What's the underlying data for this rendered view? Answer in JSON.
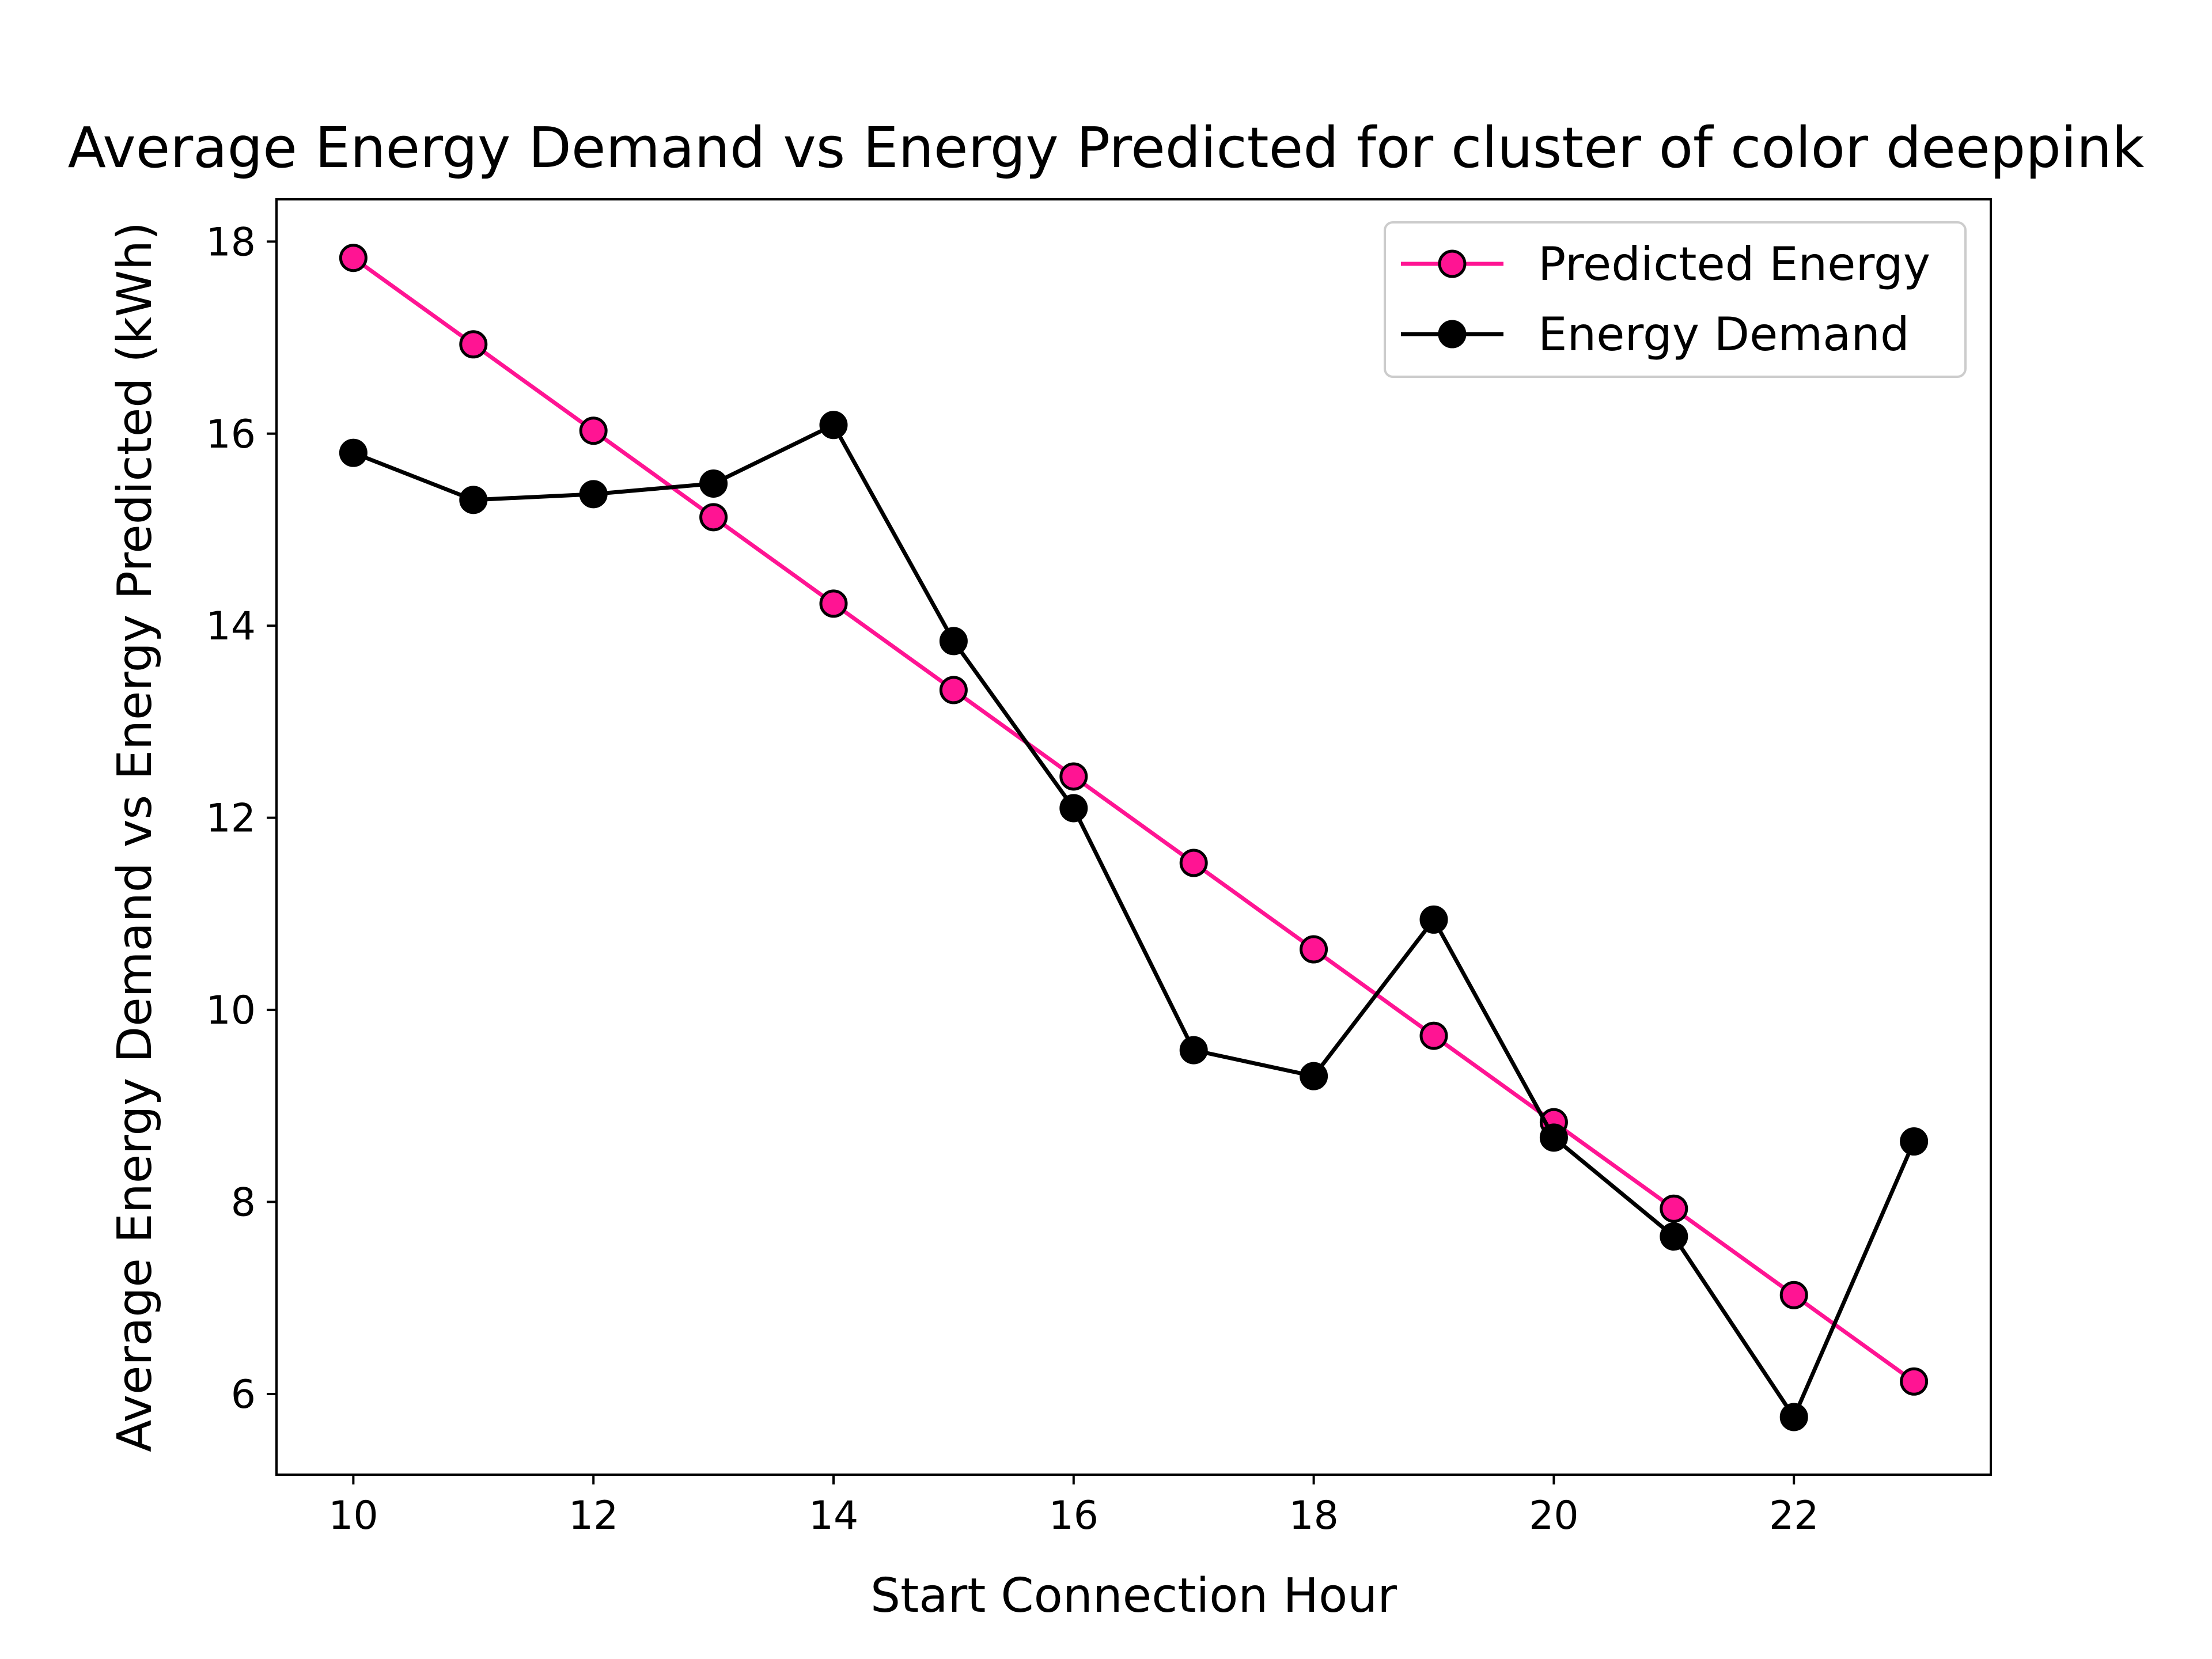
{
  "chart_data": {
    "type": "line",
    "title": "Average Energy Demand vs Energy Predicted for cluster of color  deeppink",
    "xlabel": "Start Connection Hour",
    "ylabel": "Average Energy Demand vs Energy Predicted (kWh)",
    "xlim": [
      9.36,
      23.64
    ],
    "ylim": [
      5.16,
      18.44
    ],
    "xticks": [
      10,
      12,
      14,
      16,
      18,
      20,
      22
    ],
    "yticks": [
      6,
      8,
      10,
      12,
      14,
      16,
      18
    ],
    "grid": false,
    "legend_position": "top-right",
    "x": [
      10,
      11,
      12,
      13,
      14,
      15,
      16,
      17,
      18,
      19,
      20,
      21,
      22,
      23
    ],
    "series": [
      {
        "name": "Predicted Energy",
        "color": "#ff1493",
        "marker_edge": "#000000",
        "values": [
          17.83,
          16.93,
          16.03,
          15.13,
          14.23,
          13.33,
          12.43,
          11.53,
          10.63,
          9.73,
          8.83,
          7.93,
          7.03,
          6.13
        ]
      },
      {
        "name": "Energy Demand",
        "color": "#000000",
        "marker_edge": "#000000",
        "values": [
          15.8,
          15.31,
          15.37,
          15.48,
          16.09,
          13.84,
          12.1,
          9.58,
          9.31,
          10.94,
          8.67,
          7.64,
          5.76,
          8.63
        ]
      }
    ]
  }
}
